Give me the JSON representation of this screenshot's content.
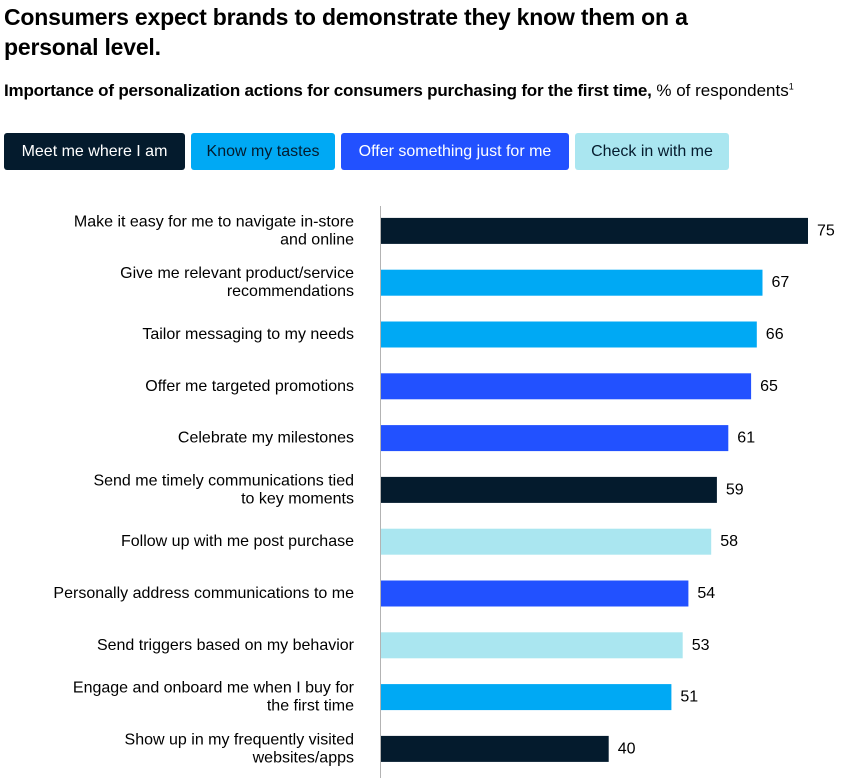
{
  "title": "Consumers expect brands to demonstrate they know them on a personal level.",
  "subtitle": {
    "strong": "Importance of personalization actions for consumers purchasing for the first time,",
    "unit": "% of respondents",
    "footnote_marker": "1"
  },
  "colors": {
    "meet": "#041b2d",
    "know": "#00a9f4",
    "offer": "#2251ff",
    "check": "#aae6f0",
    "axis": "#b3b3b3"
  },
  "legend": [
    {
      "key": "meet",
      "label": "Meet me where I am"
    },
    {
      "key": "know",
      "label": "Know my tastes"
    },
    {
      "key": "offer",
      "label": "Offer something just for me"
    },
    {
      "key": "check",
      "label": "Check in with me"
    }
  ],
  "chart_data": {
    "type": "bar",
    "orientation": "horizontal",
    "xlim": [
      0,
      75
    ],
    "grid": false,
    "legend_position": "top",
    "bars": [
      {
        "label": [
          "Make it easy for me to navigate in-store",
          "and online"
        ],
        "value": 75,
        "category": "meet"
      },
      {
        "label": [
          "Give me relevant product/service",
          "recommendations"
        ],
        "value": 67,
        "category": "know"
      },
      {
        "label": [
          "Tailor messaging to my needs"
        ],
        "value": 66,
        "category": "know"
      },
      {
        "label": [
          "Offer me targeted promotions"
        ],
        "value": 65,
        "category": "offer"
      },
      {
        "label": [
          "Celebrate my milestones"
        ],
        "value": 61,
        "category": "offer"
      },
      {
        "label": [
          "Send me timely communications tied",
          "to key moments"
        ],
        "value": 59,
        "category": "meet"
      },
      {
        "label": [
          "Follow up with me post purchase"
        ],
        "value": 58,
        "category": "check"
      },
      {
        "label": [
          "Personally address communications to me"
        ],
        "value": 54,
        "category": "offer"
      },
      {
        "label": [
          "Send triggers based on my behavior"
        ],
        "value": 53,
        "category": "check"
      },
      {
        "label": [
          "Engage and onboard me when I buy for",
          "the first time"
        ],
        "value": 51,
        "category": "know"
      },
      {
        "label": [
          "Show up in my frequently visited",
          "websites/apps"
        ],
        "value": 40,
        "category": "meet"
      }
    ]
  }
}
